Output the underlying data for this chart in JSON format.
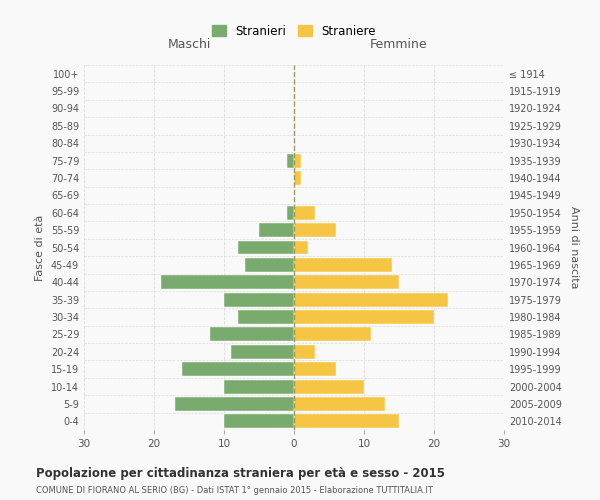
{
  "age_groups": [
    "0-4",
    "5-9",
    "10-14",
    "15-19",
    "20-24",
    "25-29",
    "30-34",
    "35-39",
    "40-44",
    "45-49",
    "50-54",
    "55-59",
    "60-64",
    "65-69",
    "70-74",
    "75-79",
    "80-84",
    "85-89",
    "90-94",
    "95-99",
    "100+"
  ],
  "birth_years": [
    "2010-2014",
    "2005-2009",
    "2000-2004",
    "1995-1999",
    "1990-1994",
    "1985-1989",
    "1980-1984",
    "1975-1979",
    "1970-1974",
    "1965-1969",
    "1960-1964",
    "1955-1959",
    "1950-1954",
    "1945-1949",
    "1940-1944",
    "1935-1939",
    "1930-1934",
    "1925-1929",
    "1920-1924",
    "1915-1919",
    "≤ 1914"
  ],
  "males": [
    10,
    17,
    10,
    16,
    9,
    12,
    8,
    10,
    19,
    7,
    8,
    5,
    1,
    0,
    0,
    1,
    0,
    0,
    0,
    0,
    0
  ],
  "females": [
    15,
    13,
    10,
    6,
    3,
    11,
    20,
    22,
    15,
    14,
    2,
    6,
    3,
    0,
    1,
    1,
    0,
    0,
    0,
    0,
    0
  ],
  "male_color": "#7aab6e",
  "female_color": "#f5c543",
  "title": "Popolazione per cittadinanza straniera per età e sesso - 2015",
  "subtitle": "COMUNE DI FIORANO AL SERIO (BG) - Dati ISTAT 1° gennaio 2015 - Elaborazione TUTTITALIA.IT",
  "xlabel_left": "Maschi",
  "xlabel_right": "Femmine",
  "ylabel_left": "Fasce di età",
  "ylabel_right": "Anni di nascita",
  "legend_male": "Stranieri",
  "legend_female": "Straniere",
  "xlim": 30,
  "background_color": "#f9f9f9",
  "grid_color": "#dddddd",
  "dashed_line_color": "#999966"
}
